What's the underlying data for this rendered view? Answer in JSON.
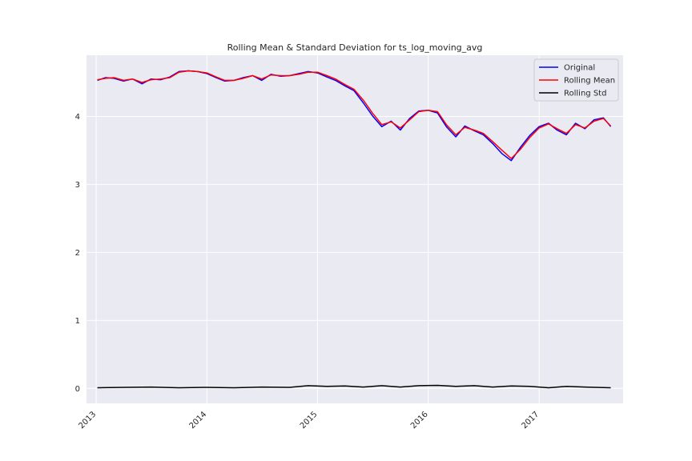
{
  "chart_data": {
    "type": "line",
    "title": "Rolling Mean & Standard Deviation for ts_log_moving_avg",
    "xlabel": "",
    "ylabel": "",
    "x_ticks": [
      "2013",
      "2014",
      "2015",
      "2016",
      "2017"
    ],
    "y_ticks": [
      "0",
      "1",
      "2",
      "3",
      "4"
    ],
    "ylim": [
      -0.22,
      4.9
    ],
    "xlim": [
      "2012-11-30",
      "2017-10-05"
    ],
    "grid": true,
    "legend_position": "top-right",
    "series": [
      {
        "name": "Original",
        "color": "#0000ff",
        "x": [
          "2013-01-05",
          "2013-02-01",
          "2013-03-01",
          "2013-04-01",
          "2013-05-01",
          "2013-06-01",
          "2013-07-01",
          "2013-08-01",
          "2013-09-01",
          "2013-10-01",
          "2013-11-01",
          "2013-12-01",
          "2014-01-01",
          "2014-02-01",
          "2014-03-01",
          "2014-04-01",
          "2014-05-01",
          "2014-06-01",
          "2014-07-01",
          "2014-08-01",
          "2014-09-01",
          "2014-10-01",
          "2014-11-01",
          "2014-12-01",
          "2015-01-01",
          "2015-02-01",
          "2015-03-01",
          "2015-04-01",
          "2015-05-01",
          "2015-06-01",
          "2015-07-01",
          "2015-08-01",
          "2015-09-01",
          "2015-10-01",
          "2015-11-01",
          "2015-12-01",
          "2016-01-01",
          "2016-02-01",
          "2016-03-01",
          "2016-04-01",
          "2016-05-01",
          "2016-06-01",
          "2016-07-01",
          "2016-08-01",
          "2016-09-01",
          "2016-10-01",
          "2016-11-01",
          "2016-12-01",
          "2017-01-01",
          "2017-02-01",
          "2017-03-01",
          "2017-04-01",
          "2017-05-01",
          "2017-06-01",
          "2017-07-01",
          "2017-08-01",
          "2017-08-25"
        ],
        "y": [
          4.53,
          4.57,
          4.56,
          4.52,
          4.55,
          4.48,
          4.55,
          4.54,
          4.58,
          4.66,
          4.67,
          4.66,
          4.63,
          4.57,
          4.52,
          4.53,
          4.57,
          4.6,
          4.53,
          4.62,
          4.59,
          4.6,
          4.63,
          4.66,
          4.64,
          4.58,
          4.53,
          4.45,
          4.38,
          4.2,
          4.01,
          3.85,
          3.93,
          3.8,
          3.97,
          4.08,
          4.09,
          4.05,
          3.85,
          3.7,
          3.86,
          3.79,
          3.73,
          3.6,
          3.45,
          3.35,
          3.55,
          3.72,
          3.85,
          3.9,
          3.8,
          3.73,
          3.9,
          3.82,
          3.95,
          3.98,
          3.85
        ]
      },
      {
        "name": "Rolling Mean",
        "color": "#ff0000",
        "x": [
          "2013-01-05",
          "2013-02-01",
          "2013-03-01",
          "2013-04-01",
          "2013-05-01",
          "2013-06-01",
          "2013-07-01",
          "2013-08-01",
          "2013-09-01",
          "2013-10-01",
          "2013-11-01",
          "2013-12-01",
          "2014-01-01",
          "2014-02-01",
          "2014-03-01",
          "2014-04-01",
          "2014-05-01",
          "2014-06-01",
          "2014-07-01",
          "2014-08-01",
          "2014-09-01",
          "2014-10-01",
          "2014-11-01",
          "2014-12-01",
          "2015-01-01",
          "2015-02-01",
          "2015-03-01",
          "2015-04-01",
          "2015-05-01",
          "2015-06-01",
          "2015-07-01",
          "2015-08-01",
          "2015-09-01",
          "2015-10-01",
          "2015-11-01",
          "2015-12-01",
          "2016-01-01",
          "2016-02-01",
          "2016-03-01",
          "2016-04-01",
          "2016-05-01",
          "2016-06-01",
          "2016-07-01",
          "2016-08-01",
          "2016-09-01",
          "2016-10-01",
          "2016-11-01",
          "2016-12-01",
          "2017-01-01",
          "2017-02-01",
          "2017-03-01",
          "2017-04-01",
          "2017-05-01",
          "2017-06-01",
          "2017-07-01",
          "2017-08-01",
          "2017-08-25"
        ],
        "y": [
          4.54,
          4.56,
          4.57,
          4.53,
          4.55,
          4.5,
          4.54,
          4.55,
          4.57,
          4.65,
          4.67,
          4.66,
          4.64,
          4.58,
          4.53,
          4.53,
          4.56,
          4.6,
          4.55,
          4.61,
          4.6,
          4.6,
          4.62,
          4.65,
          4.65,
          4.6,
          4.55,
          4.47,
          4.4,
          4.24,
          4.05,
          3.88,
          3.92,
          3.83,
          3.95,
          4.07,
          4.09,
          4.07,
          3.88,
          3.73,
          3.84,
          3.8,
          3.75,
          3.63,
          3.5,
          3.38,
          3.52,
          3.69,
          3.83,
          3.89,
          3.82,
          3.75,
          3.88,
          3.83,
          3.93,
          3.97,
          3.86
        ]
      },
      {
        "name": "Rolling Std",
        "color": "#000000",
        "x": [
          "2013-01-05",
          "2013-04-01",
          "2013-07-01",
          "2013-10-01",
          "2014-01-01",
          "2014-04-01",
          "2014-07-01",
          "2014-10-01",
          "2014-12-01",
          "2015-02-01",
          "2015-04-01",
          "2015-06-01",
          "2015-08-01",
          "2015-10-01",
          "2015-12-01",
          "2016-02-01",
          "2016-04-01",
          "2016-06-01",
          "2016-08-01",
          "2016-10-01",
          "2016-12-01",
          "2017-02-01",
          "2017-04-01",
          "2017-06-01",
          "2017-08-25"
        ],
        "y": [
          0.01,
          0.015,
          0.02,
          0.01,
          0.015,
          0.01,
          0.02,
          0.015,
          0.04,
          0.03,
          0.035,
          0.02,
          0.04,
          0.02,
          0.04,
          0.045,
          0.03,
          0.04,
          0.02,
          0.035,
          0.03,
          0.01,
          0.03,
          0.02,
          0.01
        ]
      }
    ]
  }
}
